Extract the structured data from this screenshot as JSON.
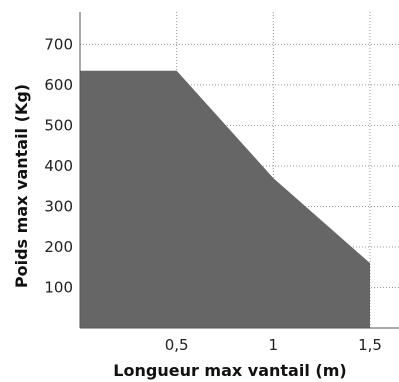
{
  "chart_data": {
    "type": "area",
    "title": "",
    "xlabel": "Longueur max vantail (m)",
    "ylabel": "Poids max vantail (Kg)",
    "xlim": [
      0,
      1.65
    ],
    "ylim": [
      0,
      780
    ],
    "x_ticks": [
      0.5,
      1,
      1.5
    ],
    "x_tick_labels": [
      "0,5",
      "1",
      "1,5"
    ],
    "y_ticks": [
      100,
      200,
      300,
      400,
      500,
      600,
      700
    ],
    "y_tick_labels": [
      "100",
      "200",
      "300",
      "400",
      "500",
      "600",
      "700"
    ],
    "grid": true,
    "fill_color": "#666666",
    "grid_color": "#999999",
    "series": [
      {
        "x": [
          0,
          0.5,
          1,
          1.5
        ],
        "y": [
          635,
          635,
          370,
          160
        ]
      }
    ]
  }
}
